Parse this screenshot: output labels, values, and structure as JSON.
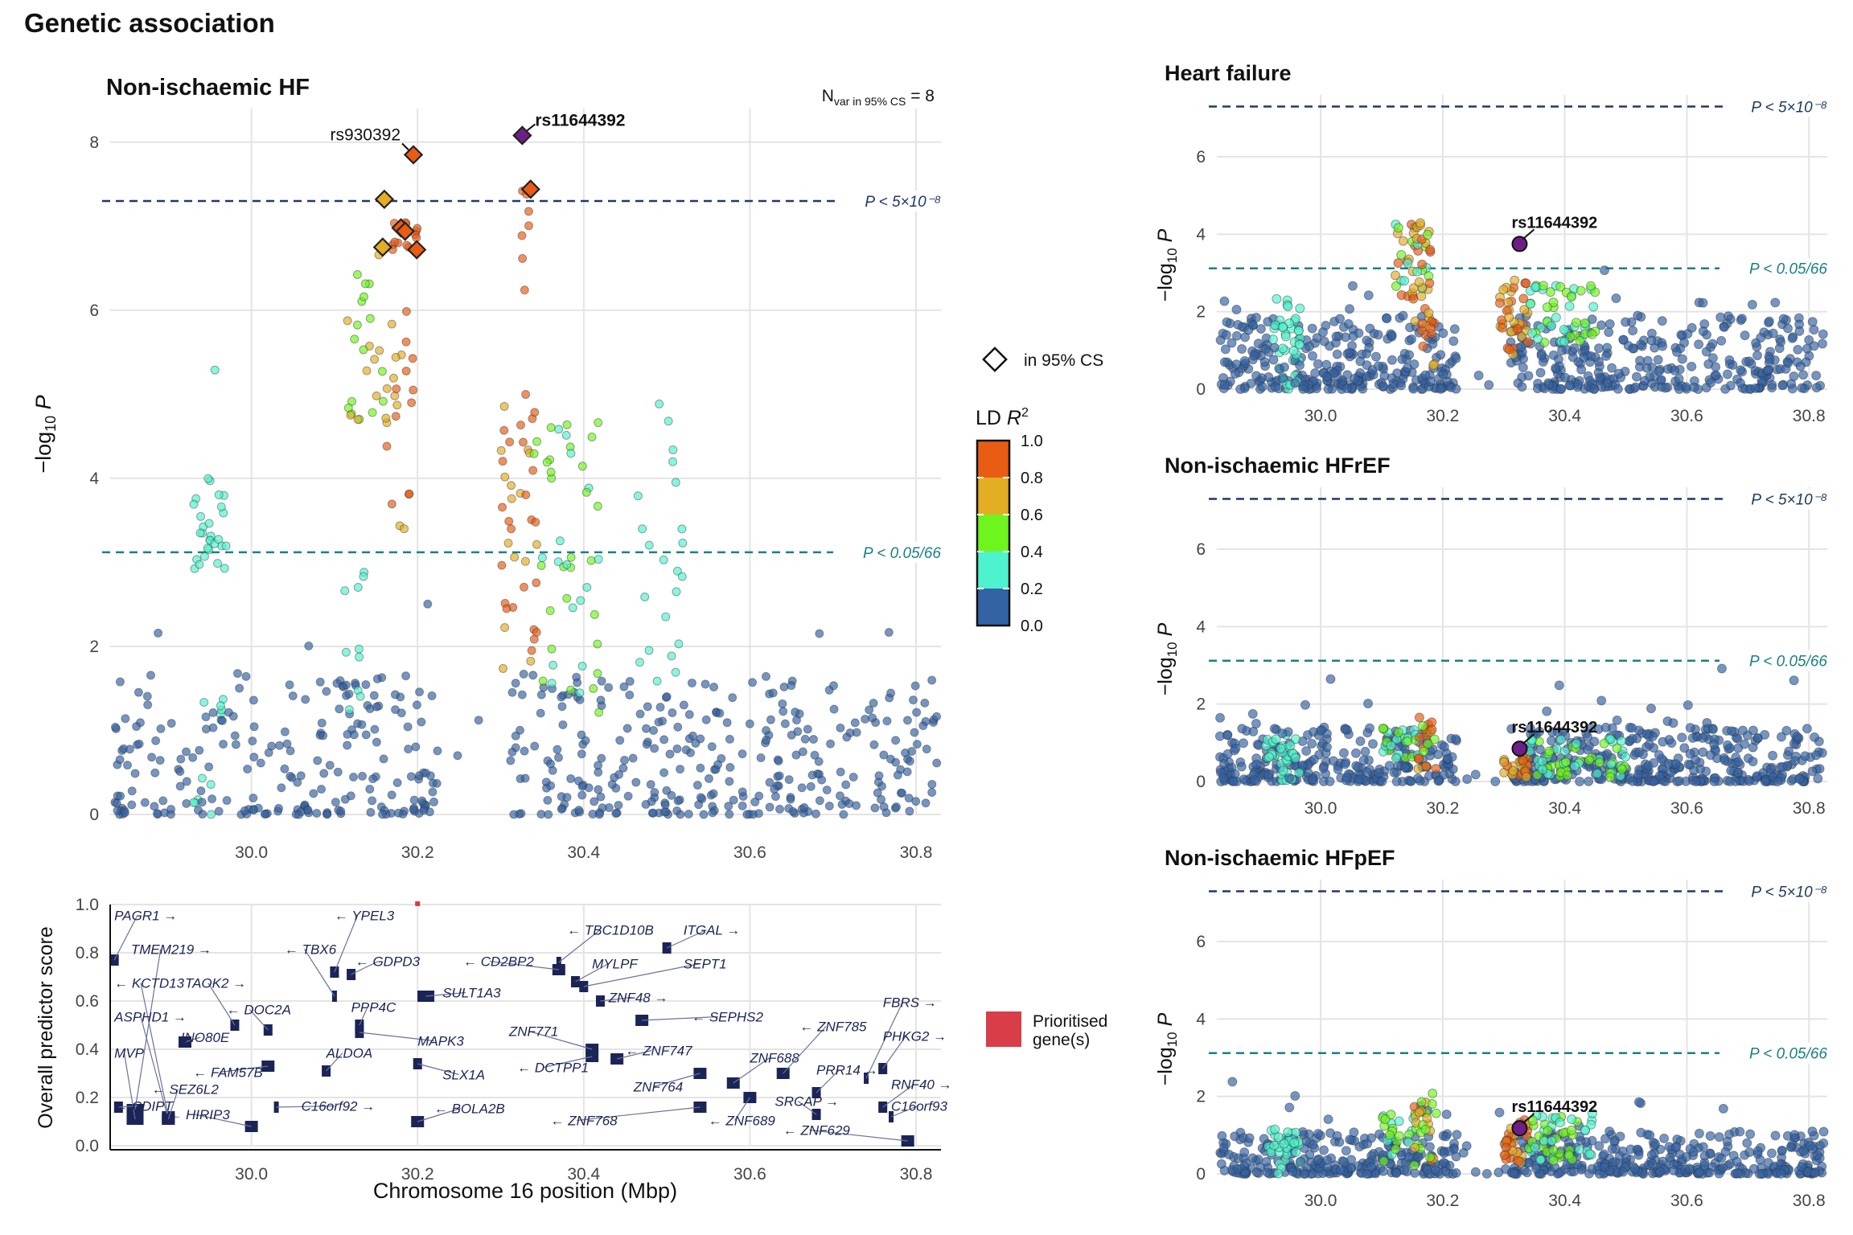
{
  "figure_title": "Genetic association",
  "colors": {
    "ld_bins": [
      "#3463a5",
      "#4ff2cf",
      "#6ef51e",
      "#e3ad24",
      "#e85c13"
    ],
    "lead": "#6d1f87",
    "sig_line": "#1f3a66",
    "sugg_line": "#1a7f86",
    "gene": "#1b2456",
    "prioritised": "#d83d48",
    "grid": "#e4e4e4"
  },
  "legend": {
    "cs_label": "in 95% CS",
    "ld_title": "LD R²",
    "ld_ticks": [
      "1.0",
      "0.8",
      "0.6",
      "0.4",
      "0.2",
      "0.0"
    ],
    "prioritised_label": "Prioritised gene(s)"
  },
  "chart_data": [
    {
      "id": "main",
      "type": "scatter",
      "title": "Non-ischaemic HF",
      "annotation": "N var in 95% CS = 8",
      "ylabel": "−log10 P",
      "xlim": [
        29.83,
        30.83
      ],
      "ylim": [
        0,
        8.4
      ],
      "x_ticks": [
        "30.0",
        "30.2",
        "30.4",
        "30.6",
        "30.8"
      ],
      "y_ticks": [
        "0",
        "2",
        "4",
        "6",
        "8"
      ],
      "thresholds": [
        {
          "y": 7.3,
          "label": "P < 5×10⁻⁸",
          "kind": "sig"
        },
        {
          "y": 3.12,
          "label": "P < 0.05/66",
          "kind": "sugg"
        }
      ],
      "labeled_variants": [
        {
          "name": "rs11644392",
          "x": 30.326,
          "y": 8.08,
          "lead": true
        },
        {
          "name": "rs930392",
          "x": 30.195,
          "y": 7.85,
          "lead": false
        }
      ],
      "credible_set": [
        {
          "x": 30.326,
          "y": 8.08,
          "ld": 1.0
        },
        {
          "x": 30.195,
          "y": 7.85,
          "ld": 0.9
        },
        {
          "x": 30.336,
          "y": 7.44,
          "ld": 0.9
        },
        {
          "x": 30.16,
          "y": 7.32,
          "ld": 0.7
        },
        {
          "x": 30.18,
          "y": 6.98,
          "ld": 0.9
        },
        {
          "x": 30.185,
          "y": 6.94,
          "ld": 0.9
        },
        {
          "x": 30.158,
          "y": 6.75,
          "ld": 0.7
        },
        {
          "x": 30.199,
          "y": 6.72,
          "ld": 0.9
        }
      ]
    },
    {
      "id": "hf",
      "type": "scatter",
      "title": "Heart failure",
      "ylabel": "−log10 P",
      "xlim": [
        29.83,
        30.83
      ],
      "ylim": [
        0,
        7.6
      ],
      "x_ticks": [
        "30.0",
        "30.2",
        "30.4",
        "30.6",
        "30.8"
      ],
      "y_ticks": [
        "0",
        "2",
        "4",
        "6"
      ],
      "thresholds": [
        {
          "y": 7.3,
          "label": "P < 5×10⁻⁸",
          "kind": "sig"
        },
        {
          "y": 3.12,
          "label": "P < 0.05/66",
          "kind": "sugg"
        }
      ],
      "labeled_variants": [
        {
          "name": "rs11644392",
          "x": 30.326,
          "y": 3.75,
          "lead": true
        }
      ]
    },
    {
      "id": "hfref",
      "type": "scatter",
      "title": "Non-ischaemic HFrEF",
      "ylabel": "−log10 P",
      "xlim": [
        29.83,
        30.83
      ],
      "ylim": [
        0,
        7.6
      ],
      "x_ticks": [
        "30.0",
        "30.2",
        "30.4",
        "30.6",
        "30.8"
      ],
      "y_ticks": [
        "0",
        "2",
        "4",
        "6"
      ],
      "thresholds": [
        {
          "y": 7.3,
          "label": "P < 5×10⁻⁸",
          "kind": "sig"
        },
        {
          "y": 3.12,
          "label": "P < 0.05/66",
          "kind": "sugg"
        }
      ],
      "labeled_variants": [
        {
          "name": "rs11644392",
          "x": 30.326,
          "y": 0.85,
          "lead": true
        }
      ]
    },
    {
      "id": "hfpef",
      "type": "scatter",
      "title": "Non-ischaemic HFpEF",
      "ylabel": "−log10 P",
      "xlim": [
        29.83,
        30.83
      ],
      "ylim": [
        0,
        7.6
      ],
      "x_ticks": [
        "30.0",
        "30.2",
        "30.4",
        "30.6",
        "30.8"
      ],
      "y_ticks": [
        "0",
        "2",
        "4",
        "6"
      ],
      "thresholds": [
        {
          "y": 7.3,
          "label": "P < 5×10⁻⁸",
          "kind": "sig"
        },
        {
          "y": 3.12,
          "label": "P < 0.05/66",
          "kind": "sugg"
        }
      ],
      "labeled_variants": [
        {
          "name": "rs11644392",
          "x": 30.326,
          "y": 1.18,
          "lead": true
        }
      ]
    },
    {
      "id": "genes",
      "type": "scatter",
      "ylabel": "Overall predictor score",
      "xlabel": "Chromosome 16 position (Mbp)",
      "xlim": [
        29.83,
        30.83
      ],
      "ylim": [
        0,
        1.0
      ],
      "x_ticks": [
        "30.0",
        "30.2",
        "30.4",
        "30.6",
        "30.8"
      ],
      "y_ticks": [
        "0.0",
        "0.2",
        "0.4",
        "0.6",
        "0.8",
        "1.0"
      ],
      "prioritised": [
        {
          "x": 30.2,
          "y": 1.0
        }
      ],
      "genes": [
        {
          "name": "PAGR1",
          "dir": "+",
          "x": 29.835,
          "y": 0.77,
          "lx": 29.835,
          "ly": 0.935
        },
        {
          "name": "TMEM219",
          "dir": "+",
          "x": 29.86,
          "y": 0.15,
          "lx": 29.855,
          "ly": 0.795
        },
        {
          "name": "KCTD13",
          "dir": "-",
          "x": 29.9,
          "y": 0.12,
          "lx": 29.835,
          "ly": 0.655
        },
        {
          "name": "TAOK2",
          "dir": "+",
          "x": 29.98,
          "y": 0.5,
          "lx": 29.92,
          "ly": 0.655
        },
        {
          "name": "ASPHD1",
          "dir": "+",
          "x": 29.9,
          "y": 0.11,
          "lx": 29.835,
          "ly": 0.515
        },
        {
          "name": "DOC2A",
          "dir": "-",
          "x": 30.02,
          "y": 0.48,
          "lx": 29.97,
          "ly": 0.545
        },
        {
          "name": "INO80E",
          "dir": "",
          "x": 29.92,
          "y": 0.43,
          "lx": 29.915,
          "ly": 0.43
        },
        {
          "name": "MVP",
          "dir": "",
          "x": 29.86,
          "y": 0.11,
          "lx": 29.835,
          "ly": 0.365
        },
        {
          "name": "FAM57B",
          "dir": "-",
          "x": 30.02,
          "y": 0.33,
          "lx": 29.93,
          "ly": 0.285
        },
        {
          "name": "SEZ6L2",
          "dir": "-",
          "x": 29.9,
          "y": 0.11,
          "lx": 29.88,
          "ly": 0.215
        },
        {
          "name": "CDIPT",
          "dir": "-",
          "x": 29.84,
          "y": 0.16,
          "lx": 29.835,
          "ly": 0.145
        },
        {
          "name": "HIRIP3",
          "dir": "-",
          "x": 30.0,
          "y": 0.08,
          "lx": 29.9,
          "ly": 0.11
        },
        {
          "name": "YPEL3",
          "dir": "-",
          "x": 30.1,
          "y": 0.72,
          "lx": 30.1,
          "ly": 0.935
        },
        {
          "name": "TBX6",
          "dir": "-",
          "x": 30.1,
          "y": 0.62,
          "lx": 30.04,
          "ly": 0.795
        },
        {
          "name": "GDPD3",
          "dir": "-",
          "x": 30.12,
          "y": 0.71,
          "lx": 30.125,
          "ly": 0.745
        },
        {
          "name": "PPP4C",
          "dir": "",
          "x": 30.13,
          "y": 0.5,
          "lx": 30.12,
          "ly": 0.555
        },
        {
          "name": "ALDOA",
          "dir": "",
          "x": 30.09,
          "y": 0.31,
          "lx": 30.09,
          "ly": 0.365
        },
        {
          "name": "MAPK3",
          "dir": "",
          "x": 30.13,
          "y": 0.47,
          "lx": 30.2,
          "ly": 0.415
        },
        {
          "name": "C16orf92",
          "dir": "+",
          "x": 30.03,
          "y": 0.16,
          "lx": 30.06,
          "ly": 0.145
        },
        {
          "name": "CD2BP2",
          "dir": "-",
          "x": 30.37,
          "y": 0.73,
          "lx": 30.255,
          "ly": 0.745
        },
        {
          "name": "SULT1A3",
          "dir": "",
          "x": 30.21,
          "y": 0.62,
          "lx": 30.23,
          "ly": 0.615
        },
        {
          "name": "SLX1A",
          "dir": "",
          "x": 30.2,
          "y": 0.34,
          "lx": 30.23,
          "ly": 0.275
        },
        {
          "name": "BOLA2B",
          "dir": "-",
          "x": 30.2,
          "y": 0.1,
          "lx": 30.22,
          "ly": 0.135
        },
        {
          "name": "TBC1D10B",
          "dir": "-",
          "x": 30.37,
          "y": 0.76,
          "lx": 30.38,
          "ly": 0.875
        },
        {
          "name": "ITGAL",
          "dir": "+",
          "x": 30.5,
          "y": 0.82,
          "lx": 30.52,
          "ly": 0.875
        },
        {
          "name": "MYLPF",
          "dir": "",
          "x": 30.39,
          "y": 0.68,
          "lx": 30.41,
          "ly": 0.735
        },
        {
          "name": "SEPT1",
          "dir": "",
          "x": 30.4,
          "y": 0.66,
          "lx": 30.52,
          "ly": 0.735
        },
        {
          "name": "ZNF48",
          "dir": "+",
          "x": 30.42,
          "y": 0.6,
          "lx": 30.43,
          "ly": 0.595
        },
        {
          "name": "ZNF771",
          "dir": "",
          "x": 30.41,
          "y": 0.4,
          "lx": 30.31,
          "ly": 0.455
        },
        {
          "name": "SEPHS2",
          "dir": "-",
          "x": 30.47,
          "y": 0.52,
          "lx": 30.53,
          "ly": 0.515
        },
        {
          "name": "ZNF747",
          "dir": "-",
          "x": 30.44,
          "y": 0.36,
          "lx": 30.45,
          "ly": 0.375
        },
        {
          "name": "DCTPP1",
          "dir": "-",
          "x": 30.41,
          "y": 0.37,
          "lx": 30.32,
          "ly": 0.305
        },
        {
          "name": "ZNF764",
          "dir": "",
          "x": 30.54,
          "y": 0.3,
          "lx": 30.46,
          "ly": 0.225
        },
        {
          "name": "ZNF768",
          "dir": "-",
          "x": 30.54,
          "y": 0.16,
          "lx": 30.36,
          "ly": 0.085
        },
        {
          "name": "ZNF689",
          "dir": "-",
          "x": 30.6,
          "y": 0.2,
          "lx": 30.55,
          "ly": 0.085
        },
        {
          "name": "ZNF688",
          "dir": "",
          "x": 30.58,
          "y": 0.26,
          "lx": 30.6,
          "ly": 0.345
        },
        {
          "name": "ZNF785",
          "dir": "-",
          "x": 30.64,
          "y": 0.3,
          "lx": 30.66,
          "ly": 0.475
        },
        {
          "name": "FBRS",
          "dir": "+",
          "x": 30.74,
          "y": 0.28,
          "lx": 30.76,
          "ly": 0.575
        },
        {
          "name": "PHKG2",
          "dir": "+",
          "x": 30.76,
          "y": 0.32,
          "lx": 30.76,
          "ly": 0.435
        },
        {
          "name": "PRR14",
          "dir": "+",
          "x": 30.68,
          "y": 0.22,
          "lx": 30.68,
          "ly": 0.295
        },
        {
          "name": "RNF40",
          "dir": "+",
          "x": 30.76,
          "y": 0.16,
          "lx": 30.77,
          "ly": 0.235
        },
        {
          "name": "SRCAP",
          "dir": "+",
          "x": 30.68,
          "y": 0.13,
          "lx": 30.63,
          "ly": 0.165
        },
        {
          "name": "C16orf93",
          "dir": "",
          "x": 30.77,
          "y": 0.12,
          "lx": 30.77,
          "ly": 0.145
        },
        {
          "name": "ZNF629",
          "dir": "-",
          "x": 30.79,
          "y": 0.02,
          "lx": 30.64,
          "ly": 0.045
        }
      ]
    }
  ]
}
